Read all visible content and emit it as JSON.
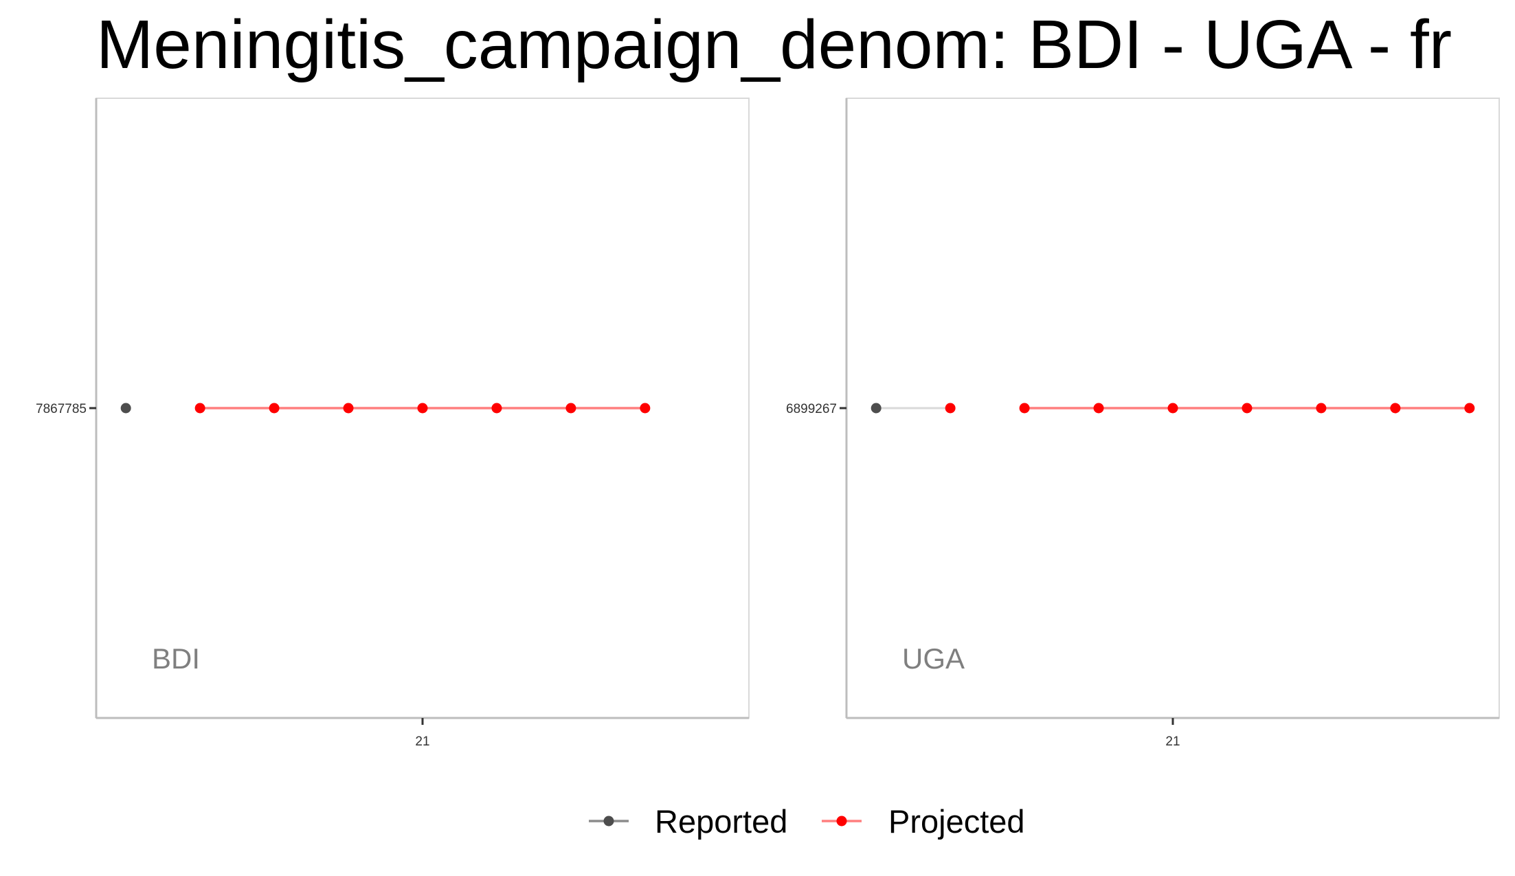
{
  "colors": {
    "reported": "#4d4d4d",
    "reported_line": "#d9d9d9",
    "projected": "#ff0000",
    "projected_line": "#ff7f7f"
  },
  "chart_data": {
    "type": "line",
    "title": "Meningitis_campaign_denom: BDI - UGA - fr",
    "legend": {
      "position": "bottom",
      "entries": [
        {
          "name": "Reported",
          "color": "#4d4d4d"
        },
        {
          "name": "Projected",
          "color": "#ff0000"
        }
      ]
    },
    "panels": [
      {
        "label": "BDI",
        "ytick": "7867785",
        "xtick": "21",
        "series": [
          {
            "name": "Reported",
            "x": [
              17
            ],
            "y": [
              7867785
            ]
          },
          {
            "name": "Projected",
            "x": [
              18,
              19,
              20,
              21,
              22,
              23,
              24
            ],
            "y": [
              7867785,
              7867785,
              7867785,
              7867785,
              7867785,
              7867785,
              7867785
            ]
          }
        ]
      },
      {
        "label": "UGA",
        "ytick": "6899267",
        "xtick": "21",
        "series": [
          {
            "name": "Reported",
            "x": [
              17
            ],
            "y": [
              6899267
            ]
          },
          {
            "name": "Projected",
            "x": [
              18,
              19,
              20,
              21,
              22,
              23,
              24,
              25
            ],
            "y": [
              6899267,
              6899267,
              6899267,
              6899267,
              6899267,
              6899267,
              6899267,
              6899267
            ]
          }
        ]
      }
    ]
  }
}
